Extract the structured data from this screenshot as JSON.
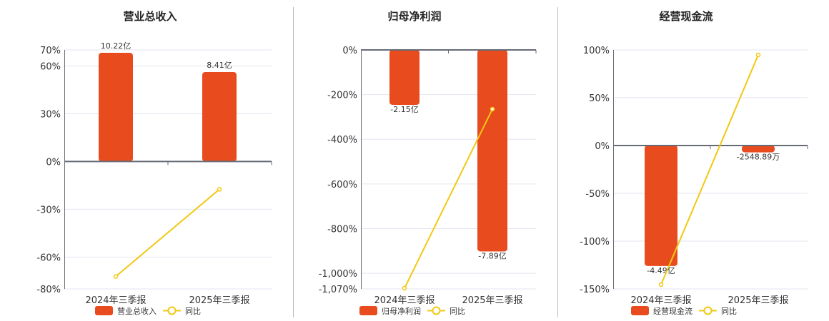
{
  "colors": {
    "bar": "#E84C1E",
    "line": "#F2C811",
    "grid": "#E3E6F0",
    "axis": "#666a75",
    "divider": "#bbbbbb"
  },
  "chart_data": [
    {
      "type": "bar+line",
      "title": "营业总收入",
      "categories": [
        "2024年三季报",
        "2025年三季报"
      ],
      "bar_series": {
        "name": "营业总收入",
        "values": [
          10.22,
          8.41
        ],
        "labels": [
          "10.22亿",
          "8.41亿"
        ],
        "unit": "亿"
      },
      "line_series": {
        "name": "同比",
        "values": [
          -72.2,
          -17.5
        ],
        "unit": "%"
      },
      "yticks": [
        70,
        60,
        30,
        0,
        -30,
        -60,
        -80
      ],
      "ytick_labels": [
        "70%",
        "60%",
        "30%",
        "0%",
        "-30%",
        "-60%",
        "-80%"
      ],
      "ylim": [
        -80,
        70
      ],
      "grid": true,
      "legend": "bottom"
    },
    {
      "type": "bar+line",
      "title": "归母净利润",
      "categories": [
        "2024年三季报",
        "2025年三季报"
      ],
      "bar_series": {
        "name": "归母净利润",
        "values": [
          -2.15,
          -7.89
        ],
        "labels": [
          "-2.15亿",
          "-7.89亿"
        ],
        "unit": "亿"
      },
      "line_series": {
        "name": "同比",
        "values": [
          -1067,
          -265
        ],
        "unit": "%"
      },
      "yticks": [
        0,
        -200,
        -400,
        -600,
        -800,
        -1000,
        -1070
      ],
      "ytick_labels": [
        "0%",
        "-200%",
        "-400%",
        "-600%",
        "-800%",
        "-1,000%",
        "-1,070%"
      ],
      "ylim": [
        -1070,
        0
      ],
      "grid": true,
      "legend": "bottom"
    },
    {
      "type": "bar+line",
      "title": "经营现金流",
      "categories": [
        "2024年三季报",
        "2025年三季报"
      ],
      "bar_series": {
        "name": "经营现金流",
        "values": [
          -4.49,
          -0.254889
        ],
        "labels": [
          "-4.49亿",
          "-2548.89万"
        ],
        "unit": "亿"
      },
      "line_series": {
        "name": "同比",
        "values": [
          -145.5,
          94.8
        ],
        "unit": "%"
      },
      "yticks": [
        100,
        50,
        0,
        -50,
        -100,
        -150
      ],
      "ytick_labels": [
        "100%",
        "50%",
        "0%",
        "-50%",
        "-100%",
        "-150%"
      ],
      "ylim": [
        -150,
        100
      ],
      "grid": true,
      "legend": "bottom"
    }
  ]
}
